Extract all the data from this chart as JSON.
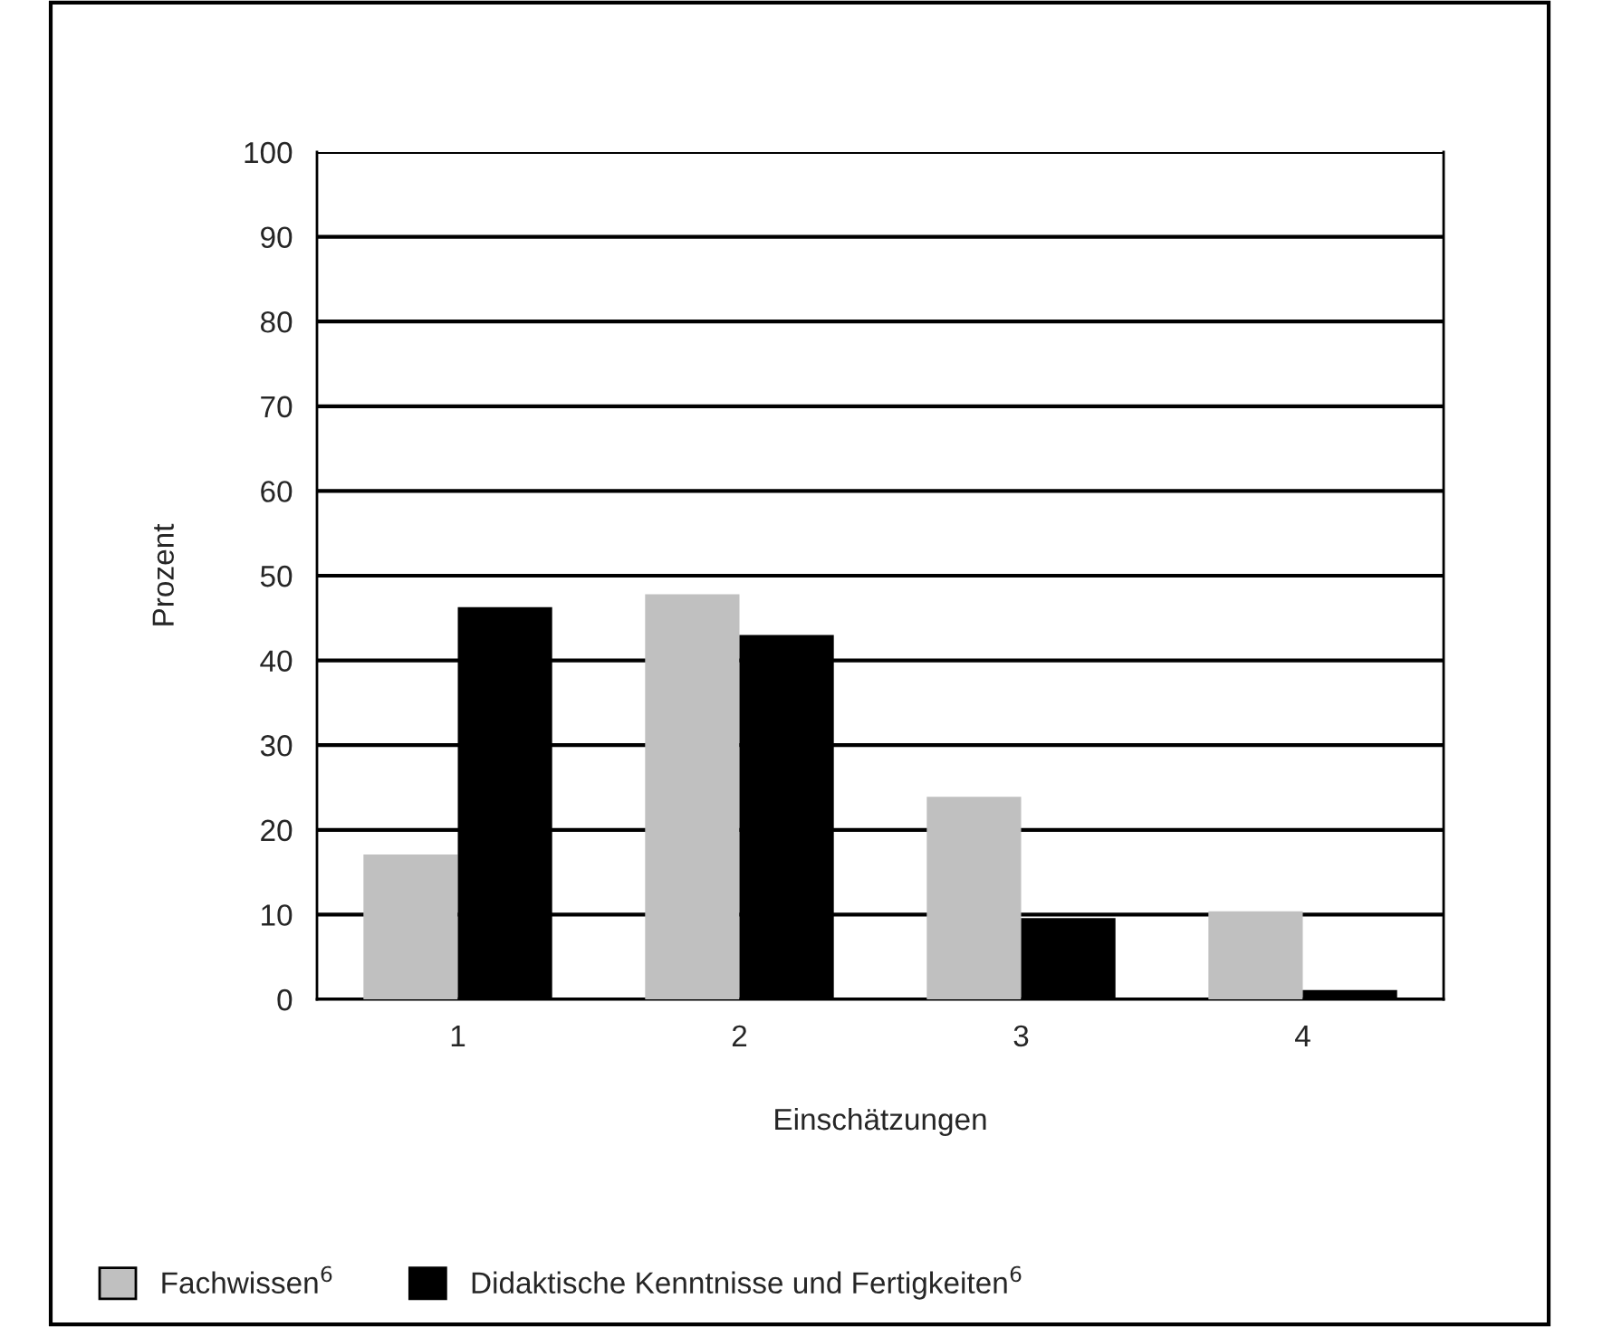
{
  "chart_data": {
    "type": "bar",
    "xlabel": "Einschätzungen",
    "ylabel": "Prozent",
    "categories": [
      "1",
      "2",
      "3",
      "4"
    ],
    "series": [
      {
        "name": "Fachwissen$^{6}$",
        "color": "#c0c0c0",
        "values": [
          17.1,
          47.8,
          23.9,
          10.4
        ]
      },
      {
        "name": "Didaktische Kenntnisse und Fertigkeiten$^{6}$",
        "color": "#000000",
        "values": [
          46.3,
          43,
          9.6,
          1.1
        ]
      }
    ],
    "ylim": [
      0,
      100
    ],
    "yticks": [
      0,
      10,
      20,
      30,
      40,
      50,
      60,
      70,
      80,
      90,
      100
    ],
    "grid": "y",
    "legend": "bottom left"
  }
}
